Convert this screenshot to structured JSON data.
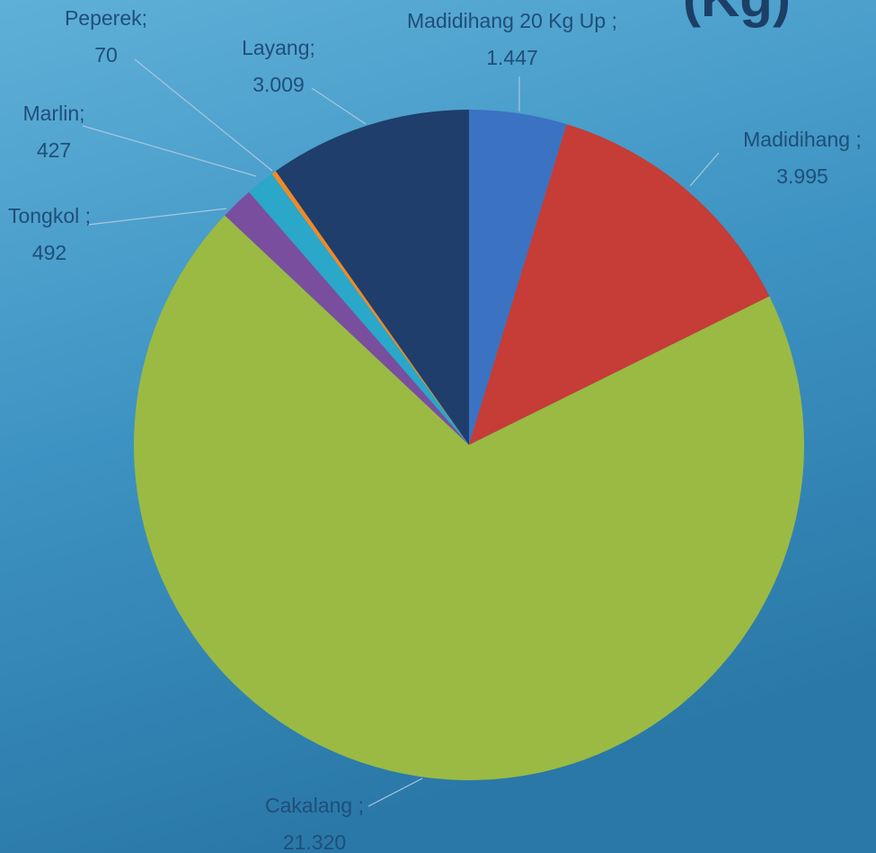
{
  "chart_data": {
    "type": "pie",
    "title": "(Kg)",
    "categories": [
      "Madidihang 20 Kg Up ;",
      "Madidihang ;",
      "Cakalang ;",
      "Tongkol ;",
      "Marlin;",
      "Peperek;",
      "Layang;"
    ],
    "values": [
      1447,
      3995,
      21320,
      492,
      427,
      70,
      3009
    ],
    "value_labels": [
      "1.447",
      "3.995",
      "21.320",
      "492",
      "427",
      "70",
      "3.009"
    ],
    "colors": [
      "#3b72c2",
      "#c63c36",
      "#9aba44",
      "#7a4e9e",
      "#2aa7c9",
      "#f28a22",
      "#1f3e6b"
    ]
  }
}
